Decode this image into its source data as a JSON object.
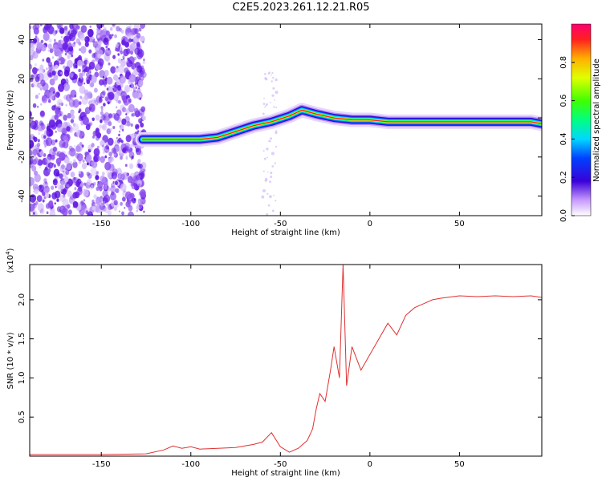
{
  "title": "C2E5.2023.261.12.21.R05",
  "chart_data": [
    {
      "type": "heatmap",
      "xlabel": "Height of straight line (km)",
      "ylabel": "Frequency (Hz)",
      "xlim": [
        -190,
        96
      ],
      "ylim": [
        -50,
        48
      ],
      "xticks": [
        -150,
        -100,
        -50,
        0,
        50
      ],
      "yticks": [
        -40,
        -20,
        0,
        20,
        40
      ],
      "ridge": {
        "x": [
          -127,
          -110,
          -95,
          -85,
          -75,
          -65,
          -55,
          -45,
          -38,
          -30,
          -20,
          -10,
          0,
          10,
          30,
          50,
          70,
          90,
          96
        ],
        "y": [
          -11,
          -11,
          -11,
          -10,
          -7,
          -4,
          -2,
          1,
          4,
          2,
          0,
          -1,
          -1,
          -2,
          -2,
          -2,
          -2,
          -2,
          -3
        ]
      },
      "noise_region_x": [
        -190,
        -126
      ],
      "colorbar": {
        "label": "Normalized spectral amplitude",
        "ticks": [
          "0.0",
          "0.2",
          "0.4",
          "0.6",
          "0.8"
        ],
        "range": [
          0,
          1
        ]
      }
    },
    {
      "type": "line",
      "xlabel": "Height of straight line (km)",
      "ylabel": "SNR (10 * v/v)",
      "yscale_label": "(x10",
      "yscale_exp": "4",
      "yscale_suffix": ")",
      "xlim": [
        -190,
        96
      ],
      "ylim": [
        0,
        2.45
      ],
      "xticks": [
        -150,
        -100,
        -50,
        0,
        50
      ],
      "yticks": [
        "0.5",
        "1.0",
        "1.5",
        "2.0"
      ],
      "line_color": "#e03030",
      "series": [
        {
          "x": [
            -190,
            -150,
            -125,
            -115,
            -110,
            -105,
            -100,
            -95,
            -85,
            -75,
            -65,
            -60,
            -55,
            -50,
            -45,
            -40,
            -35,
            -32,
            -30,
            -28,
            -25,
            -22,
            -20,
            -17,
            -15,
            -13,
            -10,
            -5,
            0,
            5,
            10,
            15,
            20,
            25,
            30,
            35,
            40,
            50,
            60,
            70,
            80,
            90,
            96
          ],
          "y": [
            0.02,
            0.02,
            0.03,
            0.08,
            0.13,
            0.1,
            0.12,
            0.09,
            0.1,
            0.11,
            0.15,
            0.18,
            0.3,
            0.12,
            0.05,
            0.1,
            0.2,
            0.35,
            0.6,
            0.8,
            0.7,
            1.1,
            1.4,
            1.0,
            2.45,
            0.9,
            1.4,
            1.1,
            1.3,
            1.5,
            1.7,
            1.55,
            1.8,
            1.9,
            1.95,
            2.0,
            2.02,
            2.05,
            2.04,
            2.05,
            2.04,
            2.05,
            2.03
          ]
        }
      ]
    }
  ]
}
